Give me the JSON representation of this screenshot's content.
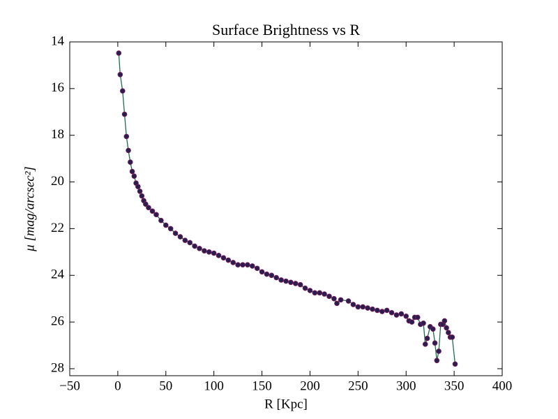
{
  "chart_data": {
    "type": "line",
    "title": "Surface Brightness vs R",
    "x_label": "R [Kpc]",
    "y_label": "μ [mag/arcsec²]",
    "x": [
      1,
      2.5,
      5,
      7,
      9,
      11,
      13,
      15,
      17,
      19,
      21,
      23,
      25,
      27,
      29,
      32,
      36,
      40,
      45,
      50,
      55,
      60,
      65,
      70,
      75,
      80,
      85,
      90,
      95,
      100,
      105,
      110,
      115,
      120,
      125,
      130,
      135,
      140,
      145,
      150,
      155,
      160,
      165,
      170,
      175,
      180,
      185,
      190,
      195,
      200,
      205,
      210,
      215,
      220,
      225,
      228,
      232,
      240,
      245,
      250,
      255,
      260,
      265,
      270,
      275,
      280,
      285,
      290,
      295,
      300,
      303,
      306,
      309,
      312,
      315,
      318,
      320,
      322,
      325,
      328,
      330,
      332,
      334,
      336,
      338,
      340,
      342,
      344,
      346,
      348,
      351
    ],
    "values": [
      14.48,
      15.4,
      16.1,
      17.1,
      18.05,
      18.65,
      19.15,
      19.55,
      19.75,
      20.05,
      20.2,
      20.4,
      20.6,
      20.8,
      20.95,
      21.1,
      21.25,
      21.4,
      21.65,
      21.85,
      22.0,
      22.2,
      22.35,
      22.5,
      22.6,
      22.75,
      22.85,
      22.95,
      23.0,
      23.05,
      23.15,
      23.25,
      23.35,
      23.45,
      23.55,
      23.55,
      23.55,
      23.6,
      23.7,
      23.85,
      23.95,
      24.0,
      24.1,
      24.2,
      24.25,
      24.3,
      24.35,
      24.4,
      24.55,
      24.65,
      24.75,
      24.75,
      24.8,
      24.9,
      25.0,
      25.2,
      25.05,
      25.1,
      25.25,
      25.35,
      25.35,
      25.4,
      25.45,
      25.5,
      25.55,
      25.5,
      25.6,
      25.7,
      25.65,
      25.75,
      25.95,
      26.0,
      25.8,
      25.8,
      26.1,
      26.05,
      26.95,
      26.7,
      26.2,
      26.3,
      26.9,
      27.65,
      27.25,
      26.1,
      26.1,
      25.95,
      26.25,
      26.45,
      26.65,
      26.65,
      27.8
    ],
    "line_color": "#1f6b4f",
    "marker_color": "#2b1d4d",
    "marker_edge": "#7a1f5e",
    "xlim": [
      -50,
      400
    ],
    "xticks": [
      {
        "value": -50,
        "label": "−50"
      },
      0,
      50,
      100,
      150,
      200,
      250,
      300,
      350,
      400
    ],
    "ylim": [
      28.3,
      14
    ],
    "yticks": [
      14,
      16,
      18,
      20,
      22,
      24,
      26,
      28
    ],
    "grid": false
  }
}
